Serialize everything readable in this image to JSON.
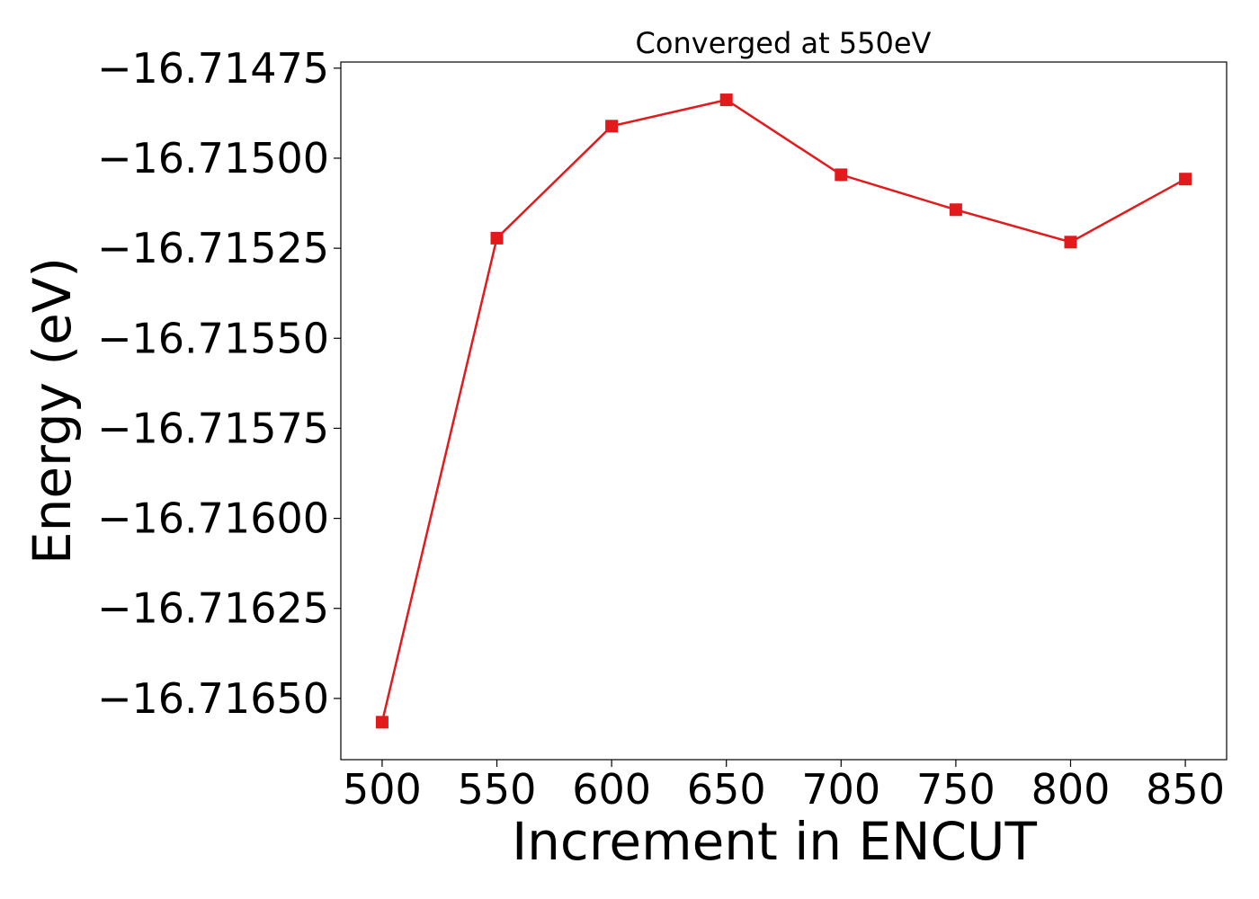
{
  "chart_data": {
    "type": "line",
    "title": "Converged at 550eV",
    "xlabel": "Increment in ENCUT",
    "ylabel": "Energy (eV)",
    "x": [
      500,
      550,
      600,
      650,
      700,
      750,
      800,
      850
    ],
    "series": [
      {
        "values": [
          -16.716566,
          -16.715222,
          -16.714911,
          -16.714838,
          -16.715046,
          -16.715143,
          -16.715233,
          -16.715058
        ],
        "color": "#e31a1c",
        "marker": "square"
      }
    ],
    "xlim": [
      482,
      868
    ],
    "ylim": [
      -16.71667,
      -16.714733
    ],
    "xticks": [
      500,
      550,
      600,
      650,
      700,
      750,
      800,
      850
    ],
    "xtick_labels": [
      "500",
      "550",
      "600",
      "650",
      "700",
      "750",
      "800",
      "850"
    ],
    "yticks": [
      -16.71475,
      -16.715,
      -16.71525,
      -16.7155,
      -16.71575,
      -16.716,
      -16.71625,
      -16.7165
    ],
    "ytick_labels": [
      "−16.71475",
      "−16.71500",
      "−16.71525",
      "−16.71550",
      "−16.71575",
      "−16.71600",
      "−16.71625",
      "−16.71650"
    ],
    "grid": false,
    "legend": "none"
  }
}
